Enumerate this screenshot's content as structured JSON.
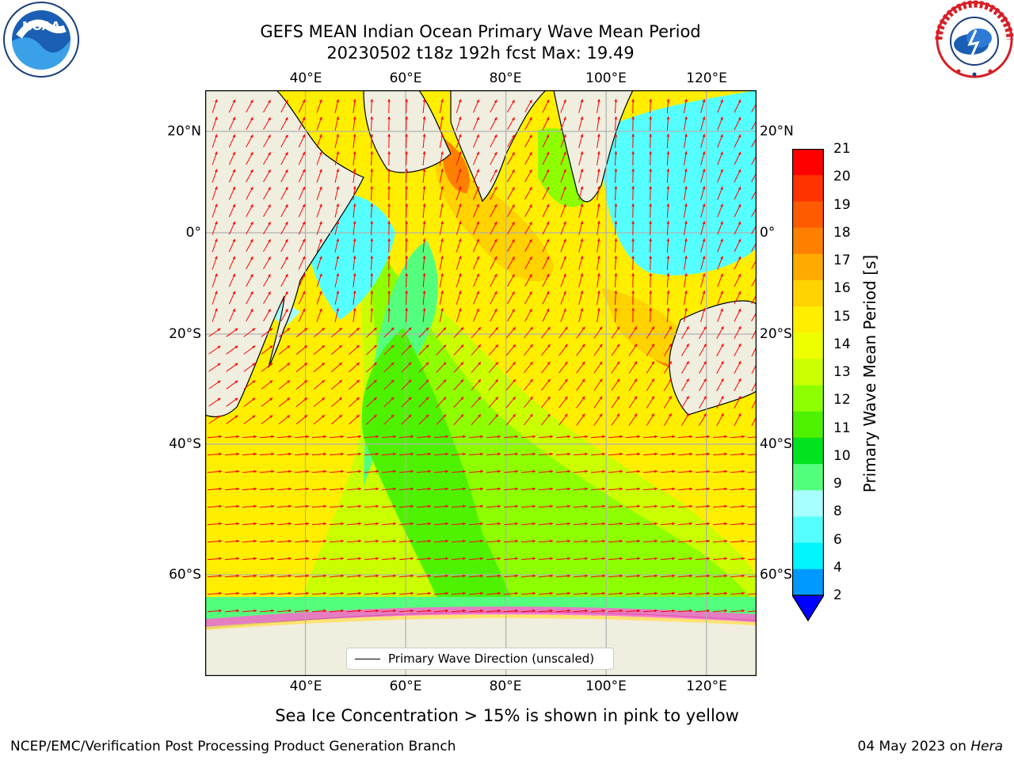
{
  "title": {
    "line1": "GEFS MEAN Indian Ocean Primary Wave Mean Period",
    "line2": "20230502 t18z 192h fcst   Max: 19.49"
  },
  "map": {
    "lon_ticks": [
      "40°E",
      "60°E",
      "80°E",
      "100°E",
      "120°E"
    ],
    "lat_ticks": [
      "20°N",
      "0°",
      "20°S",
      "40°S",
      "60°S"
    ],
    "lon_range": [
      20,
      130
    ],
    "lat_range": [
      -72,
      28
    ],
    "land_color": "#efeedf",
    "grid": true,
    "arrow_color": "#ff0000"
  },
  "legend": {
    "label": "Primary Wave Direction (unscaled)",
    "placement": "lower-center"
  },
  "colorbar": {
    "label": "Primary Wave Mean Period [s]",
    "ticks": [
      "21",
      "20",
      "19",
      "18",
      "17",
      "16",
      "15",
      "14",
      "13",
      "12",
      "11",
      "10",
      "9",
      "8",
      "6",
      "4",
      "2"
    ],
    "colors": [
      "#ff0000",
      "#ff3300",
      "#ff5a00",
      "#ff8000",
      "#ffaa00",
      "#ffd200",
      "#ffee00",
      "#eeff00",
      "#c9ff00",
      "#8dff00",
      "#4ef200",
      "#00e31e",
      "#54ff7e",
      "#a8ffff",
      "#55ffff",
      "#00f5ff",
      "#0099ff"
    ],
    "extend_color": "#0000ff"
  },
  "note": "Sea Ice Concentration > 15% is shown in pink to yellow",
  "footer": {
    "left": "NCEP/EMC/Verification Post Processing Product Generation Branch",
    "right_prefix": "04 May 2023 on ",
    "right_host": "Hera"
  },
  "logos": {
    "left": "NOAA",
    "right": "NATIONAL WEATHER SERVICE"
  }
}
